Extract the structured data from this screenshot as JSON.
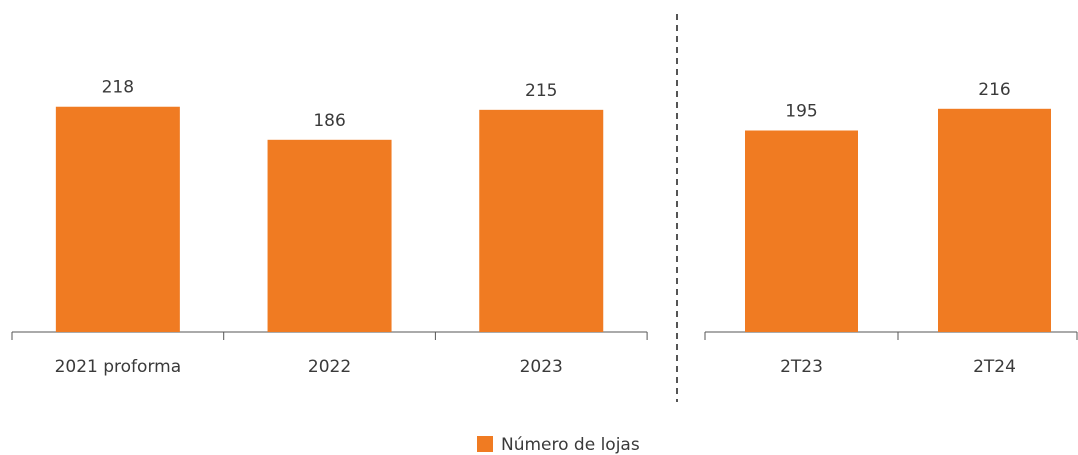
{
  "chart_data": {
    "type": "bar",
    "legend": {
      "name": "Número de lojas",
      "color": "#f07b22"
    },
    "ylim": [
      0,
      240
    ],
    "panels": [
      {
        "categories": [
          "2021 proforma",
          "2022",
          "2023"
        ],
        "values": [
          218,
          186,
          215
        ]
      },
      {
        "categories": [
          "2T23",
          "2T24"
        ],
        "values": [
          195,
          216
        ]
      }
    ]
  }
}
